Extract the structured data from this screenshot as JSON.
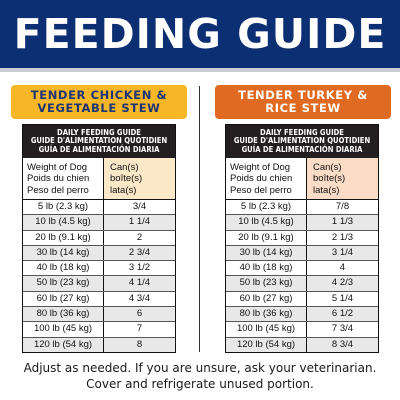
{
  "header": {
    "title": "FEEDING GUIDE"
  },
  "products": [
    {
      "name_line1": "TENDER CHICKEN &",
      "name_line2": "VEGETABLE STEW",
      "table_title": [
        "DAILY FEEDING GUIDE",
        "GUIDE D'ALIMENTATION QUOTIDIEN",
        "GUÍA DE ALIMENTACIÓN DIARIA"
      ],
      "col_weight": [
        "Weight of Dog",
        "Poids du chien",
        "Peso del perro"
      ],
      "col_cans": [
        "Can(s)",
        "boîte(s)",
        "lata(s)"
      ],
      "rows": [
        [
          "5 lb (2.3 kg)",
          "3/4"
        ],
        [
          "10 lb (4.5 kg)",
          "1 1/4"
        ],
        [
          "20 lb (9.1 kg)",
          "2"
        ],
        [
          "30 lb (14 kg)",
          "2 3/4"
        ],
        [
          "40 lb (18 kg)",
          "3 1/2"
        ],
        [
          "50 lb (23 kg)",
          "4 1/4"
        ],
        [
          "60 lb (27 kg)",
          "4 3/4"
        ],
        [
          "80 lb (36 kg)",
          "6"
        ],
        [
          "100 lb (45 kg)",
          "7"
        ],
        [
          "120 lb (54 kg)",
          "8"
        ]
      ]
    },
    {
      "name_line1": "TENDER TURKEY &",
      "name_line2": "RICE STEW",
      "table_title": [
        "DAILY FEEDING GUIDE",
        "GUIDE D'ALIMENTATION QUOTIDIEN",
        "GUÍA DE ALIMENTACIÓN DIARIA"
      ],
      "col_weight": [
        "Weight of Dog",
        "Poids du chien",
        "Peso del perro"
      ],
      "col_cans": [
        "Can(s)",
        "boîte(s)",
        "lata(s)"
      ],
      "rows": [
        [
          "5 lb (2.3 kg)",
          "7/8"
        ],
        [
          "10 lb (4.5 kg)",
          "1 1/3"
        ],
        [
          "20 lb (9.1 kg)",
          "2 1/3"
        ],
        [
          "30 lb (14 kg)",
          "3 1/4"
        ],
        [
          "40 lb (18 kg)",
          "4"
        ],
        [
          "50 lb (23 kg)",
          "4 2/3"
        ],
        [
          "60 lb (27 kg)",
          "5 1/4"
        ],
        [
          "80 lb (36 kg)",
          "6 1/2"
        ],
        [
          "100 lb (45 kg)",
          "7 3/4"
        ],
        [
          "120 lb (54 kg)",
          "8 3/4"
        ]
      ]
    }
  ],
  "footer": {
    "line1": "Adjust as needed. If you are unsure, ask your veterinarian.",
    "line2": "Cover and refrigerate unused portion."
  },
  "colors": {
    "header_bg": "#0c2f73",
    "left_banner": "#f6b626",
    "right_banner": "#e06a22"
  }
}
